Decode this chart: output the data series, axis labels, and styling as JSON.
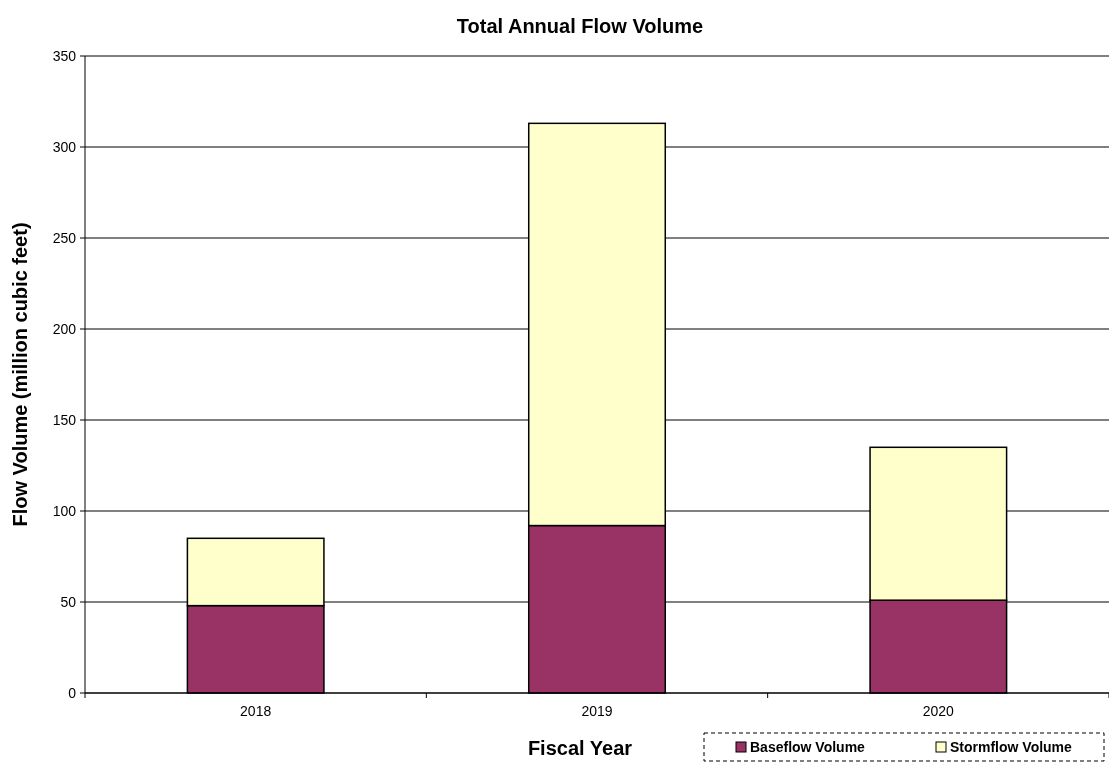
{
  "chart_data": {
    "type": "bar",
    "title": "Total Annual Flow Volume",
    "xlabel": "Fiscal Year",
    "ylabel": "Flow Volume (million cubic feet)",
    "categories": [
      "2018",
      "2019",
      "2020"
    ],
    "stacked": true,
    "series": [
      {
        "name": "Baseflow Volume",
        "color": "#993366",
        "values": [
          48,
          92,
          51
        ]
      },
      {
        "name": "Stormflow Volume",
        "color": "#ffffcc",
        "values": [
          37,
          221,
          84
        ]
      }
    ],
    "ylim": [
      0,
      350
    ],
    "yticks": [
      0,
      50,
      100,
      150,
      200,
      250,
      300,
      350
    ],
    "grid": "y",
    "legend": "bottom right"
  }
}
